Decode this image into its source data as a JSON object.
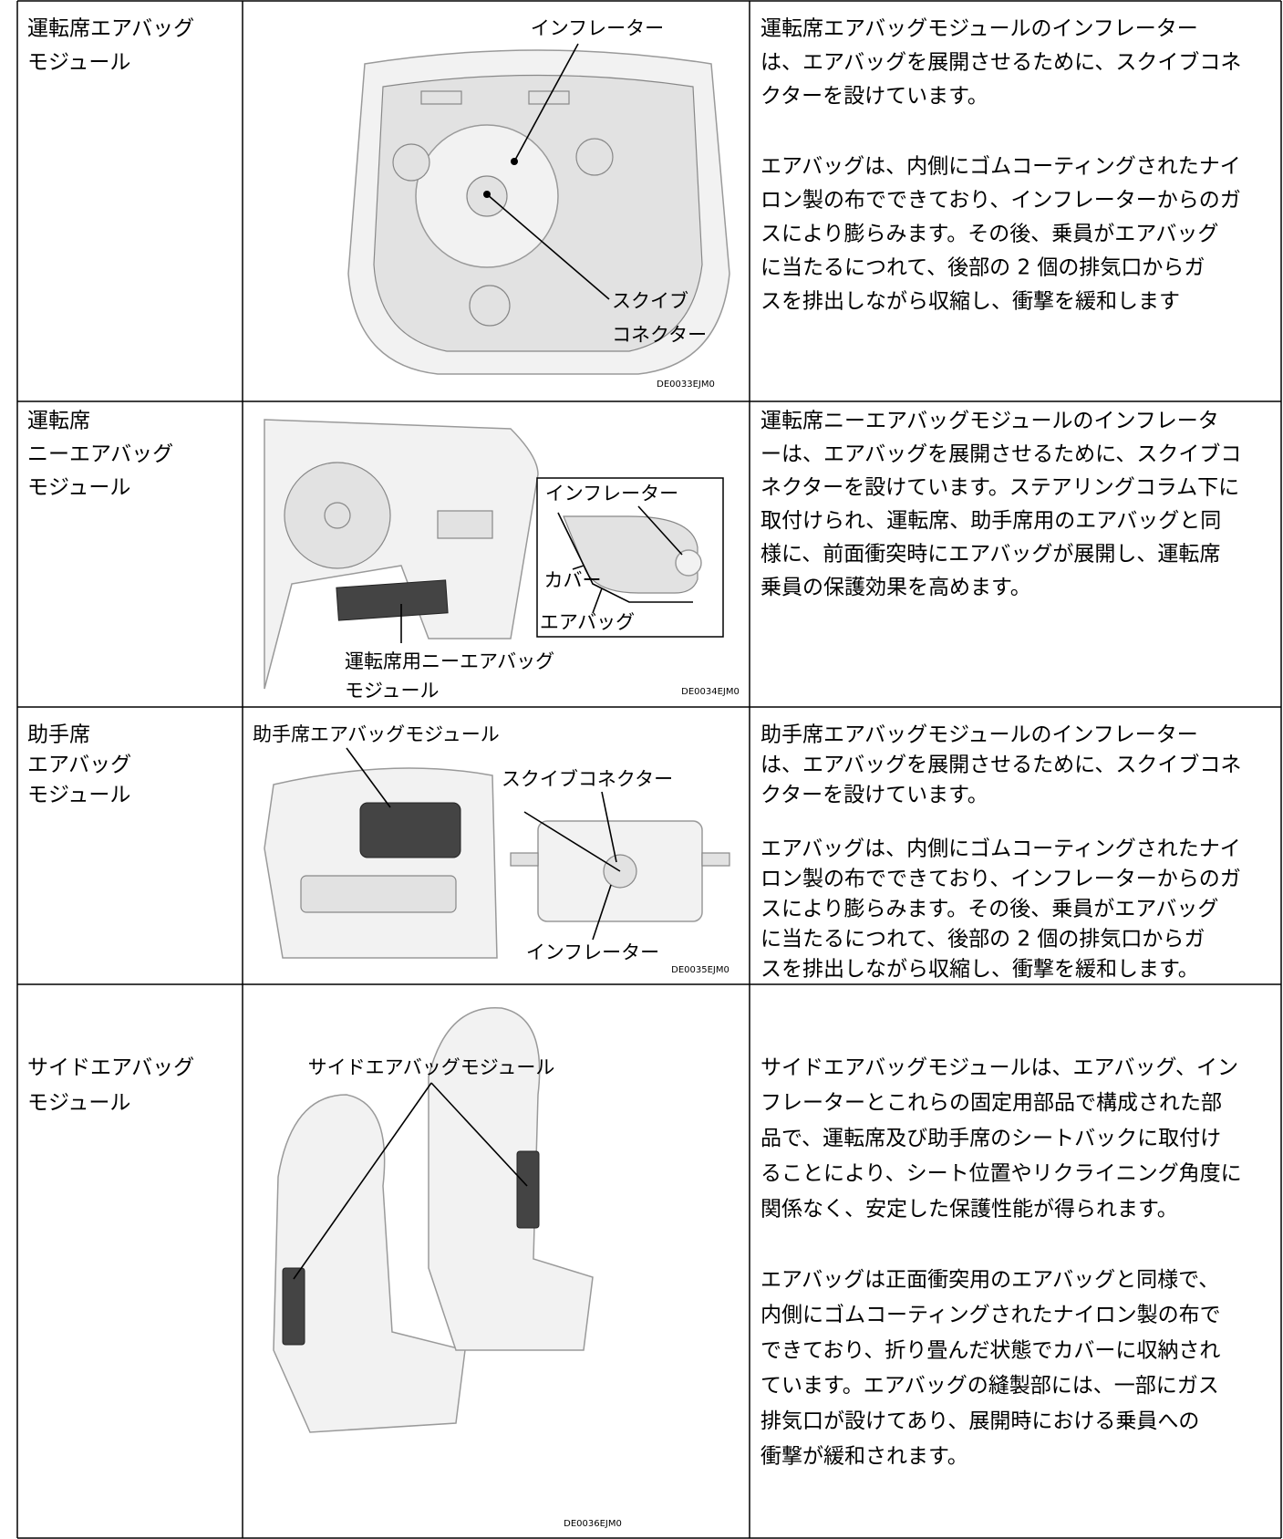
{
  "table": {
    "rows": [
      {
        "name": [
          "運転席エアバッグ",
          "モジュール"
        ],
        "figure": {
          "labels": [
            "インフレーター",
            "スクイブ",
            "コネクター"
          ],
          "code": "DE0033EJM0"
        },
        "description": [
          [
            "運転席エアバッグモジュールのインフレーター",
            "は、エアバッグを展開させるために、スクイブコネ",
            "クターを設けています。"
          ],
          [
            "エアバッグは、内側にゴムコーティングされたナイ",
            "ロン製の布でできており、インフレーターからのガ",
            "スにより膨らみます。その後、乗員がエアバッグ",
            "に当たるにつれて、後部の 2 個の排気口からガ",
            "スを排出しながら収縮し、衝撃を緩和します"
          ]
        ]
      },
      {
        "name": [
          "運転席",
          "ニーエアバッグ",
          "モジュール"
        ],
        "figure": {
          "labels": [
            "インフレーター",
            "カバー",
            "エアバッグ",
            "運転席用ニーエアバッグ",
            "モジュール"
          ],
          "code": "DE0034EJM0"
        },
        "description": [
          [
            "運転席ニーエアバッグモジュールのインフレータ",
            "ーは、エアバッグを展開させるために、スクイブコ",
            "ネクターを設けています。ステアリングコラム下に",
            "取付けられ、運転席、助手席用のエアバッグと同",
            "様に、前面衝突時にエアバッグが展開し、運転席",
            "乗員の保護効果を高めます。"
          ]
        ]
      },
      {
        "name": [
          "助手席",
          "エアバッグ",
          "モジュール"
        ],
        "figure": {
          "labels": [
            "助手席エアバッグモジュール",
            "スクイブコネクター",
            "インフレーター"
          ],
          "code": "DE0035EJM0"
        },
        "description": [
          [
            "助手席エアバッグモジュールのインフレーター",
            "は、エアバッグを展開させるために、スクイブコネ",
            "クターを設けています。"
          ],
          [
            "エアバッグは、内側にゴムコーティングされたナイ",
            "ロン製の布でできており、インフレーターからのガ",
            "スにより膨らみます。その後、乗員がエアバッグ",
            "に当たるにつれて、後部の 2 個の排気口からガ",
            "スを排出しながら収縮し、衝撃を緩和します。"
          ]
        ]
      },
      {
        "name": [
          "サイドエアバッグ",
          "モジュール"
        ],
        "figure": {
          "labels": [
            "サイドエアバッグモジュール"
          ],
          "code": "DE0036EJM0"
        },
        "description": [
          [
            "サイドエアバッグモジュールは、エアバッグ、イン",
            "フレーターとこれらの固定用部品で構成された部",
            "品で、運転席及び助手席のシートバックに取付け",
            "ることにより、シート位置やリクライニング角度に",
            "関係なく、安定した保護性能が得られます。"
          ],
          [
            "エアバッグは正面衝突用のエアバッグと同様で、",
            "内側にゴムコーティングされたナイロン製の布で",
            "できており、折り畳んだ状態でカバーに収納され",
            "ています。エアバッグの縫製部には、一部にガス",
            "排気口が設けてあり、展開時における乗員への",
            "衝撃が緩和されます。"
          ]
        ]
      }
    ]
  }
}
